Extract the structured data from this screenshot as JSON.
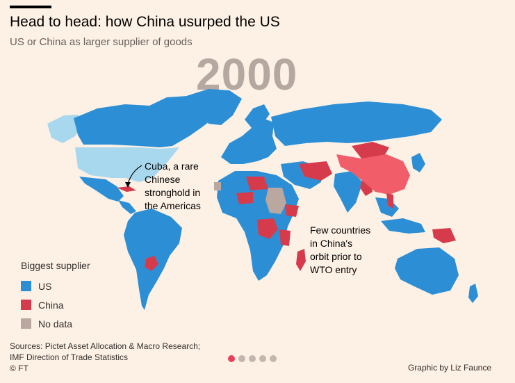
{
  "title": "Head to head: how China usurped the US",
  "subtitle": "US or China as larger supplier of goods",
  "year": "2000",
  "colors": {
    "us": "#2c8fd6",
    "china": "#d63b4c",
    "china_light": "#f15e6a",
    "us_light": "#a8d8ee",
    "no_data": "#b9a7a0",
    "background": "#fdf1e5"
  },
  "annotations": {
    "cuba": [
      "Cuba, a rare",
      "Chinese",
      "stronghold in",
      "the Americas"
    ],
    "orbit": [
      "Few countries",
      "in China's",
      "orbit prior to",
      "WTO entry"
    ]
  },
  "legend": {
    "title": "Biggest supplier",
    "items": [
      {
        "label": "US",
        "color": "#2c8fd6"
      },
      {
        "label": "China",
        "color": "#d63b4c"
      },
      {
        "label": "No data",
        "color": "#b9a7a0"
      }
    ]
  },
  "footer": {
    "sources_line1": "Sources: Pictet Asset Allocation & Macro Research;",
    "sources_line2": "IMF Direction of Trade Statistics",
    "copyright": "© FT"
  },
  "credit": "Graphic by Liz Faunce",
  "pagination": {
    "total": 5,
    "active": 1
  }
}
